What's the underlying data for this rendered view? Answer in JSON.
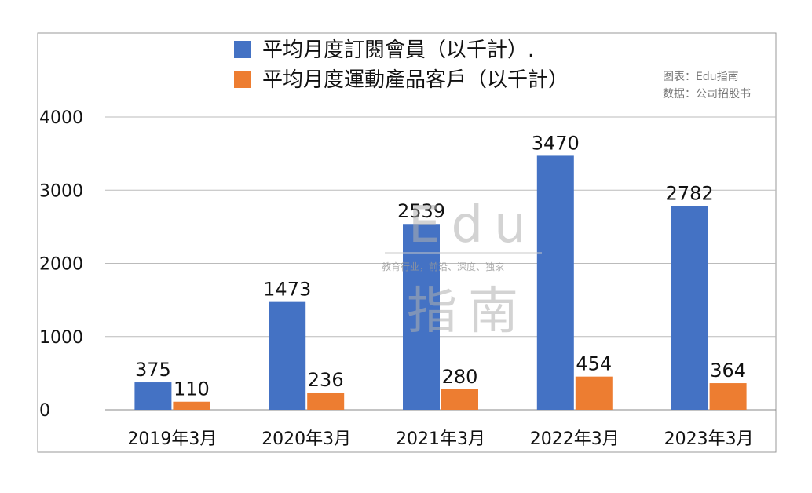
{
  "chart_data": {
    "type": "bar",
    "categories": [
      "2019年3月",
      "2020年3月",
      "2021年3月",
      "2022年3月",
      "2023年3月"
    ],
    "series": [
      {
        "name": "平均月度訂閱會員（以千計）.",
        "values": [
          375,
          1473,
          2539,
          3470,
          2782
        ],
        "color": "#4472C4"
      },
      {
        "name": "平均月度運動產品客戶（以千計）",
        "values": [
          110,
          236,
          280,
          454,
          364
        ],
        "color": "#ED7D31"
      }
    ],
    "ylim": [
      0,
      4000
    ],
    "yticks": [
      0,
      1000,
      2000,
      3000,
      4000
    ],
    "grid": true,
    "legend_position": "top-center",
    "title": "",
    "xlabel": "",
    "ylabel": ""
  },
  "source_note": {
    "line1": "图表：Edu指南",
    "line2": "数据：公司招股书"
  },
  "watermark": {
    "logo_text": "Edu",
    "slogan": "教育行业，前沿、深度、独家",
    "brand": "指南"
  }
}
